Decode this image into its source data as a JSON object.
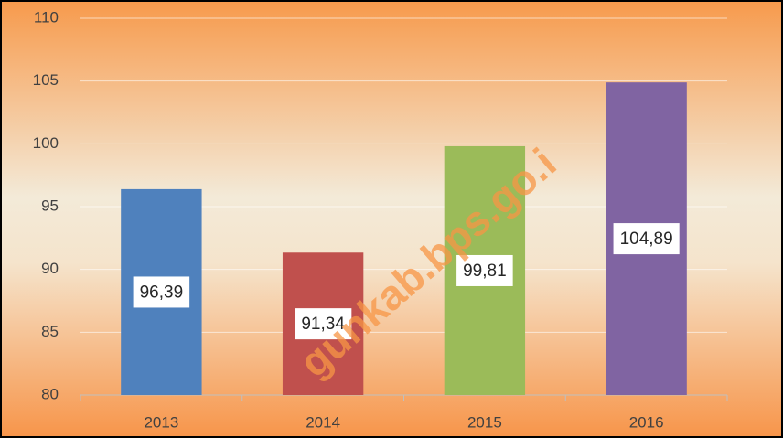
{
  "chart_data": {
    "type": "bar",
    "categories": [
      "2013",
      "2014",
      "2015",
      "2016"
    ],
    "values": [
      96.39,
      91.34,
      99.81,
      104.89
    ],
    "value_labels": [
      "96,39",
      "91,34",
      "99,81",
      "104,89"
    ],
    "colors": [
      "#4f81bd",
      "#c0504d",
      "#9bbb59",
      "#8064a2"
    ],
    "ylim": [
      80,
      110
    ],
    "yticks": [
      80,
      85,
      90,
      95,
      100,
      105,
      110
    ],
    "grid": true,
    "watermark": "gunkab.bps.go.i"
  }
}
